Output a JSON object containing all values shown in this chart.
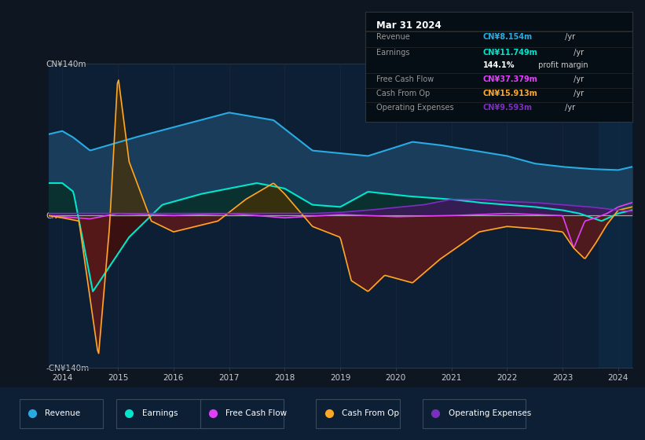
{
  "background_color": "#0e1621",
  "chart_bg": "#0d1f35",
  "right_panel_bg": "#0f2540",
  "ylim": [
    -140,
    140
  ],
  "ytick_labels": [
    "-CN¥140m",
    "CN¥0",
    "CN¥140m"
  ],
  "colors": {
    "revenue": "#29abe2",
    "revenue_fill": "#1a3d5c",
    "earnings": "#00e5cc",
    "earnings_fill": "#0a3030",
    "free_cash_flow": "#e040fb",
    "cash_from_op": "#ffa726",
    "cash_from_op_fill_neg": "#5a1a1a",
    "operating_expenses": "#7b2fbe"
  },
  "legend_items": [
    {
      "label": "Revenue",
      "color": "#29abe2"
    },
    {
      "label": "Earnings",
      "color": "#00e5cc"
    },
    {
      "label": "Free Cash Flow",
      "color": "#e040fb"
    },
    {
      "label": "Cash From Op",
      "color": "#ffa726"
    },
    {
      "label": "Operating Expenses",
      "color": "#7b2fbe"
    }
  ]
}
